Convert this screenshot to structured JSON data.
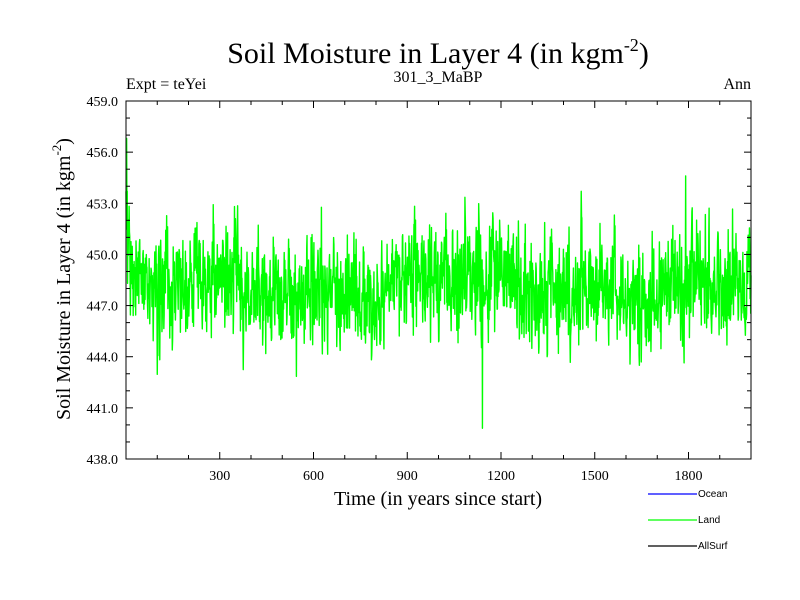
{
  "chart_data": {
    "type": "line",
    "title": "Soil Moisture in Layer 4 (in kgm",
    "title_superscript": "-2",
    "title_close": ")",
    "subtitle_left": "Expt = teYei",
    "subtitle_center": "301_3_MaBP",
    "subtitle_right": "Ann",
    "xlabel": "Time (in years since start)",
    "ylabel": "Soil Moisture in Layer 4 (in kgm",
    "ylabel_superscript": "-2",
    "ylabel_close": ")",
    "xlim": [
      0,
      2000
    ],
    "ylim": [
      438.0,
      459.0
    ],
    "x_ticks": [
      300,
      600,
      900,
      1200,
      1500,
      1800
    ],
    "x_tick_labels": [
      "300",
      "600",
      "900",
      "1200",
      "1500",
      "1800"
    ],
    "y_ticks": [
      438.0,
      441.0,
      444.0,
      447.0,
      450.0,
      453.0,
      456.0,
      459.0
    ],
    "y_tick_labels": [
      "438.0",
      "441.0",
      "444.0",
      "447.0",
      "450.0",
      "453.0",
      "456.0",
      "459.0"
    ],
    "legend": [
      {
        "name": "Ocean",
        "color": "#0000ff"
      },
      {
        "name": "Land",
        "color": "#00ff00"
      },
      {
        "name": "AllSurf",
        "color": "#000000"
      }
    ],
    "legend_position": "bottom-right",
    "series": [
      {
        "name": "Land",
        "color": "#00ff00",
        "n_years": 2000,
        "mean": 448.0,
        "typical_range": [
          444.5,
          451.5
        ],
        "initial_peak": 456.8,
        "min": 439.8,
        "min_year": 1140,
        "max_after_spinup": 454.6,
        "max_after_spinup_year": 1790
      }
    ]
  }
}
